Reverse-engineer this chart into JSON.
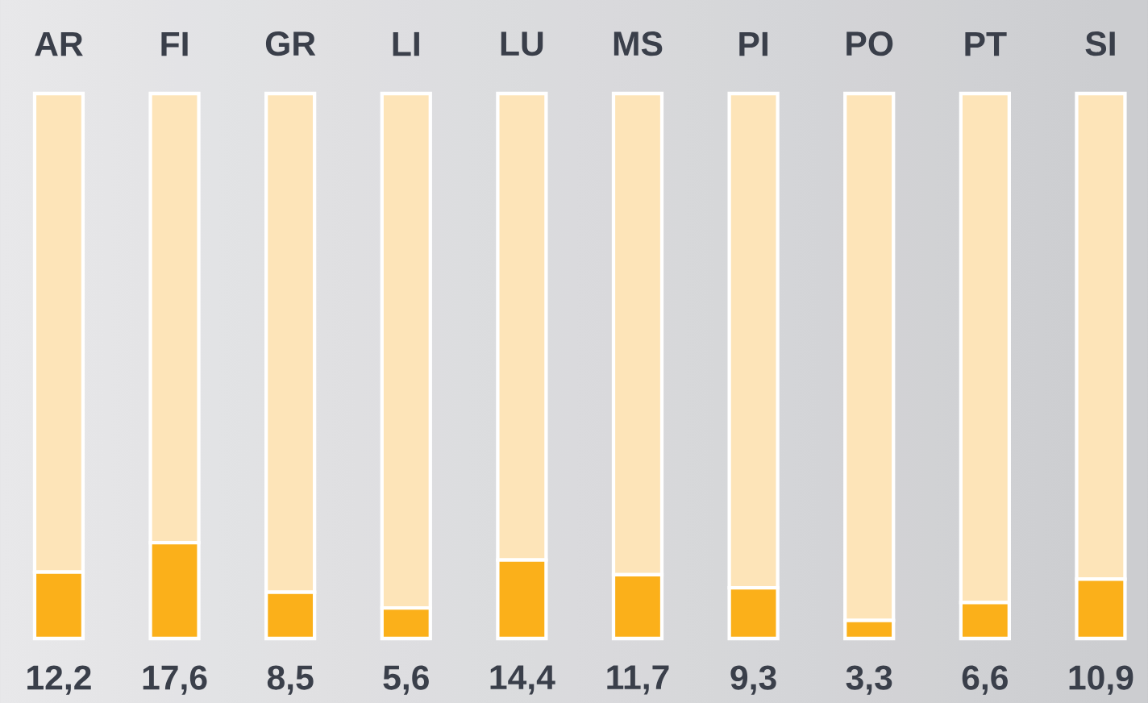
{
  "chart_data": {
    "type": "bar",
    "stacked": true,
    "categories": [
      "AR",
      "FI",
      "GR",
      "LI",
      "LU",
      "MS",
      "PI",
      "PO",
      "PT",
      "SI"
    ],
    "series": [
      {
        "color": "#fbb01a",
        "values": [
          12.2,
          17.6,
          8.5,
          5.6,
          14.4,
          11.7,
          9.3,
          3.3,
          6.6,
          10.9
        ],
        "value_labels": [
          "12,2",
          "17,6",
          "8,5",
          "5,6",
          "14,4",
          "11,7",
          "9,3",
          "3,3",
          "6,6",
          "10,9"
        ]
      },
      {
        "color": "#fde4b8",
        "values": [
          87.8,
          82.4,
          91.5,
          94.4,
          85.6,
          88.3,
          90.7,
          96.7,
          93.4,
          89.1
        ]
      }
    ],
    "ylim": [
      0,
      100
    ],
    "tick_labels": "x"
  }
}
